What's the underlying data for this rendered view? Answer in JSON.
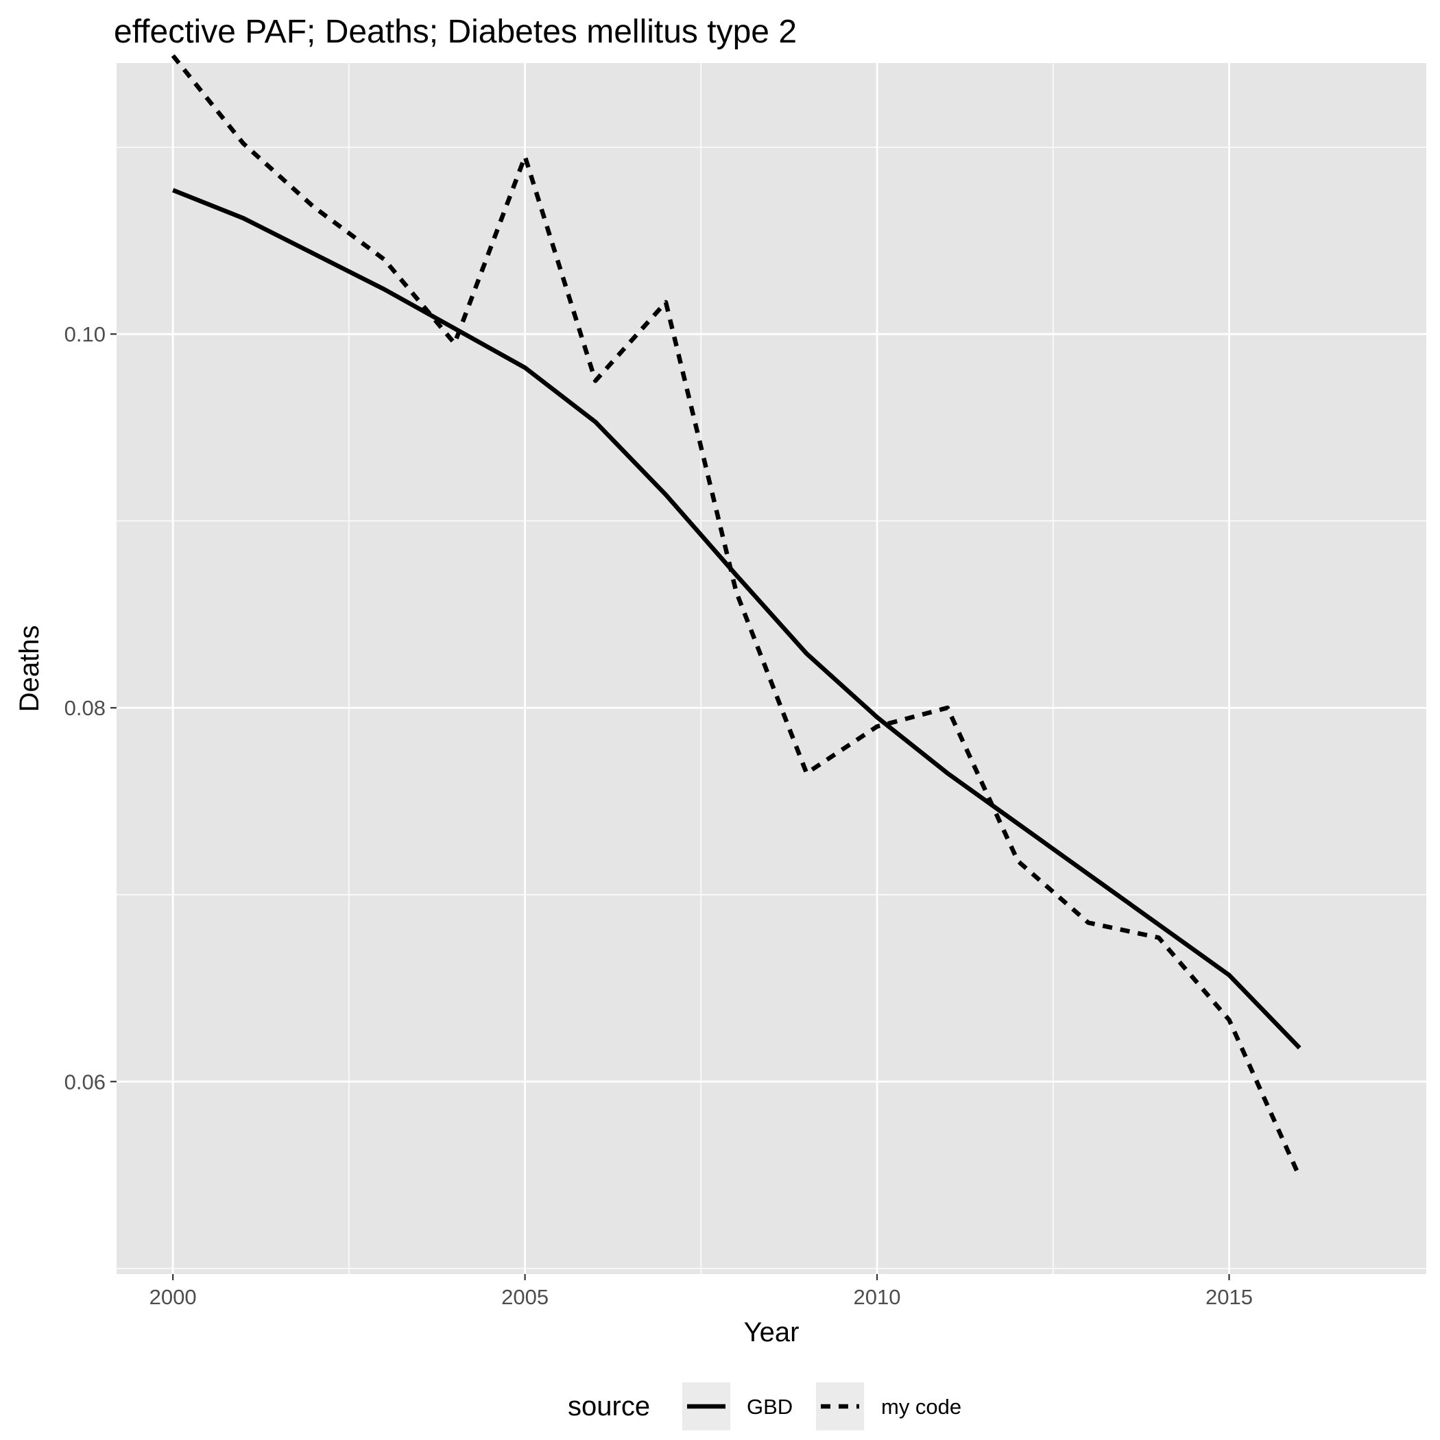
{
  "chart_data": {
    "type": "line",
    "title": "effective PAF; Deaths; Diabetes mellitus type 2",
    "xlabel": "Year",
    "ylabel": "Deaths",
    "x": [
      2000,
      2001,
      2002,
      2003,
      2004,
      2005,
      2006,
      2007,
      2008,
      2009,
      2010,
      2011,
      2012,
      2013,
      2014,
      2015,
      2016
    ],
    "xlim": [
      1999.2,
      2017.8
    ],
    "ylim": [
      0.0497,
      0.1145
    ],
    "x_ticks": [
      2000,
      2005,
      2010,
      2015
    ],
    "x_tick_labels": [
      "2000",
      "2005",
      "2010",
      "2015"
    ],
    "y_ticks": [
      0.06,
      0.08,
      0.1
    ],
    "y_tick_labels": [
      "0.06",
      "0.08",
      "0.10"
    ],
    "y_minor_ticks": [
      0.05,
      0.07,
      0.09,
      0.11
    ],
    "x_minor_ticks": [
      2002.5,
      2007.5,
      2012.5
    ],
    "grid": true,
    "legend_position": "bottom",
    "legend_title": "source",
    "series": [
      {
        "name": "GBD",
        "linetype": "solid",
        "color": "#000000",
        "values": [
          0.1077,
          0.1062,
          0.1043,
          0.1024,
          0.1003,
          0.0982,
          0.0953,
          0.0914,
          0.0871,
          0.0829,
          0.0795,
          0.0765,
          0.0738,
          0.0711,
          0.0684,
          0.0657,
          0.0618
        ]
      },
      {
        "name": "my code",
        "linetype": "dashed",
        "color": "#000000",
        "values": [
          0.1149,
          0.1102,
          0.1068,
          0.104,
          0.0995,
          0.1095,
          0.0975,
          0.1017,
          0.0862,
          0.0765,
          0.079,
          0.08,
          0.0718,
          0.0685,
          0.0677,
          0.0633,
          0.0549
        ]
      }
    ]
  },
  "colors": {
    "panel_background": "#e5e5e5",
    "grid": "#ffffff",
    "line": "#000000",
    "legend_key_background": "#ebebeb"
  }
}
